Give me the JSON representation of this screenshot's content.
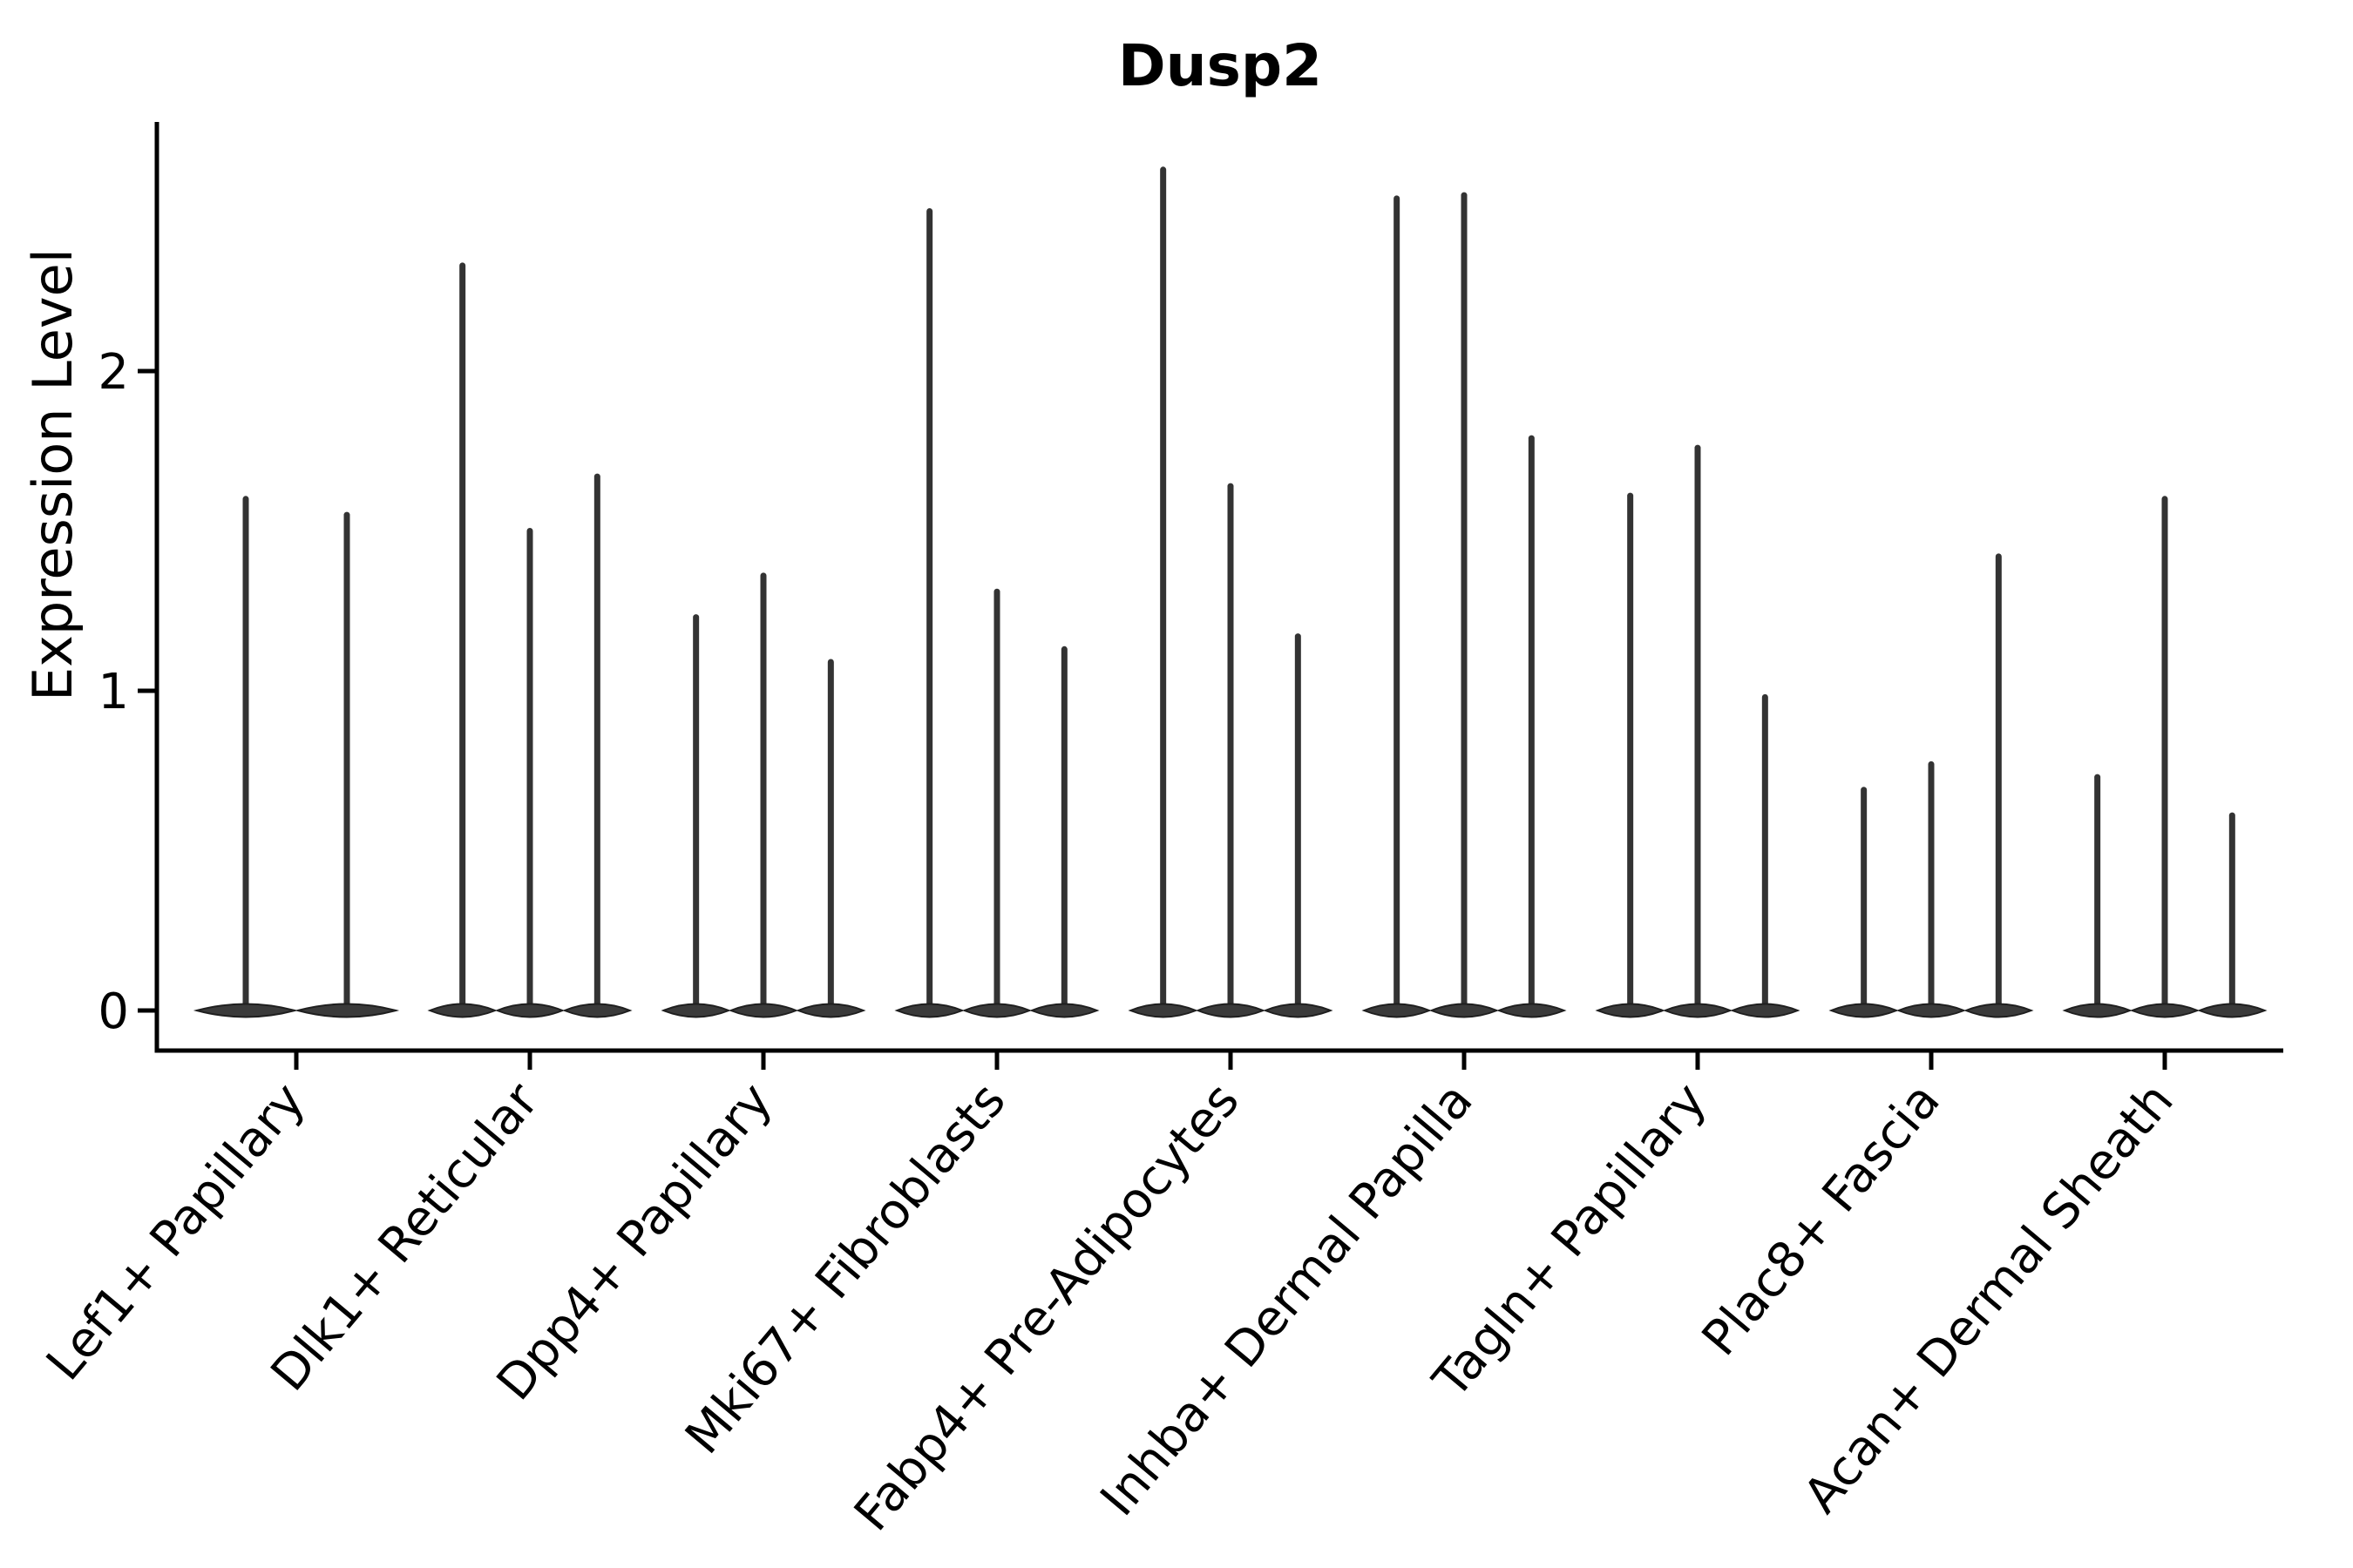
{
  "colors": {
    "background": "#ffffff",
    "text": "#000000",
    "axis": "#000000",
    "violin_fill": "#3a3a3a",
    "violin_edge": "#1f1f1f",
    "spike": "#333333"
  },
  "chart_data": {
    "type": "violin",
    "title": "Dusp2",
    "ylabel": "Expression Level",
    "xlabel": "",
    "ylim": [
      -0.13,
      2.78
    ],
    "yticks": [
      0,
      1,
      2
    ],
    "grid": false,
    "legend": null,
    "baseline_value": 0,
    "categories": [
      "Lef1+ Papillary",
      "Dlk1+ Reticular",
      "Dpp4+ Papillary",
      "Mki67+ Fibroblasts",
      "Fabp4+ Pre-Adipocytes",
      "Inhba+ Dermal Papilla",
      "Tagln+ Papillary",
      "Plac8+ Fascia",
      "Acan+ Dermal Sheath"
    ],
    "series": [
      {
        "category": "Lef1+ Papillary",
        "violin_maxima": [
          1.6,
          1.55
        ]
      },
      {
        "category": "Dlk1+ Reticular",
        "violin_maxima": [
          2.33,
          1.5,
          1.67
        ]
      },
      {
        "category": "Dpp4+ Papillary",
        "violin_maxima": [
          1.23,
          1.36,
          1.09
        ]
      },
      {
        "category": "Mki67+ Fibroblasts",
        "violin_maxima": [
          2.5,
          1.31,
          1.13
        ]
      },
      {
        "category": "Fabp4+ Pre-Adipocytes",
        "violin_maxima": [
          2.63,
          1.64,
          1.17
        ]
      },
      {
        "category": "Inhba+ Dermal Papilla",
        "violin_maxima": [
          2.54,
          2.55,
          1.79
        ]
      },
      {
        "category": "Tagln+ Papillary",
        "violin_maxima": [
          1.61,
          1.76,
          0.98
        ]
      },
      {
        "category": "Plac8+ Fascia",
        "violin_maxima": [
          0.69,
          0.77,
          1.42
        ]
      },
      {
        "category": "Acan+ Dermal Sheath",
        "violin_maxima": [
          0.73,
          1.6,
          0.61
        ]
      }
    ]
  }
}
